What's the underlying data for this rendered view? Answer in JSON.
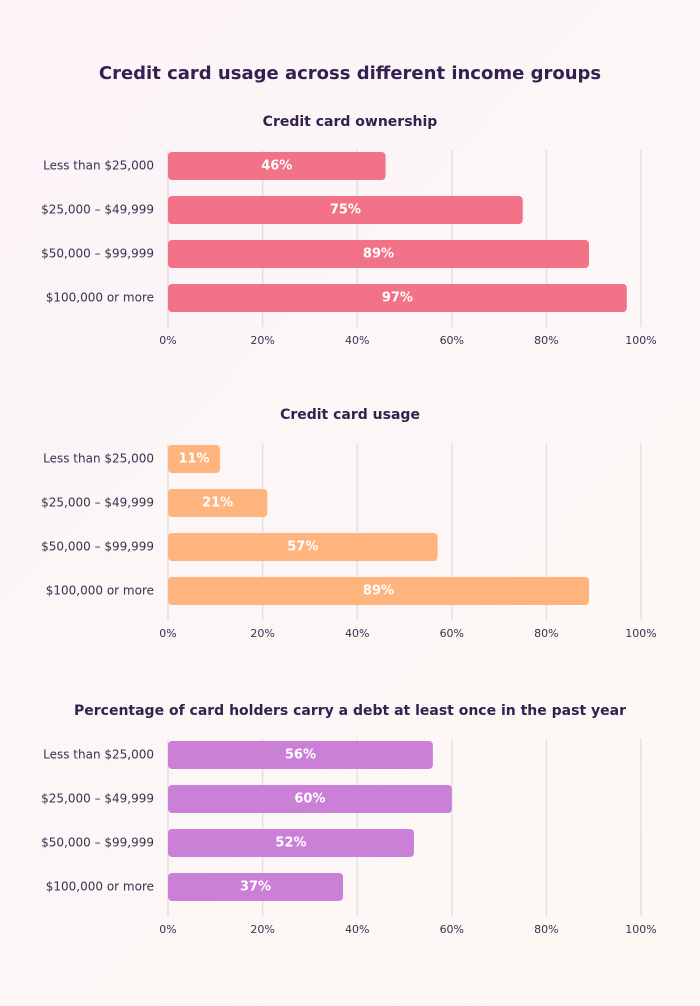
{
  "title": "Credit card usage across different income groups",
  "chart_data": [
    {
      "type": "bar",
      "orientation": "horizontal",
      "title": "Credit card ownership",
      "categories": [
        "Less than $25,000",
        "$25,000 – $49,999",
        "$50,000 – $99,999",
        "$100,000 or more"
      ],
      "values": [
        46,
        75,
        89,
        97
      ],
      "value_labels": [
        "46%",
        "75%",
        "89%",
        "97%"
      ],
      "color": "#f27287",
      "xlim": [
        0,
        100
      ],
      "xticks": [
        {
          "value": 0,
          "label": "0%"
        },
        {
          "value": 20,
          "label": "20%"
        },
        {
          "value": 40,
          "label": "40%"
        },
        {
          "value": 60,
          "label": "60%"
        },
        {
          "value": 80,
          "label": "80%"
        },
        {
          "value": 100,
          "label": "100%"
        }
      ],
      "grid": true
    },
    {
      "type": "bar",
      "orientation": "horizontal",
      "title": "Credit card usage",
      "categories": [
        "Less than $25,000",
        "$25,000 – $49,999",
        "$50,000 – $99,999",
        "$100,000 or more"
      ],
      "values": [
        11,
        21,
        57,
        89
      ],
      "value_labels": [
        "11%",
        "21%",
        "57%",
        "89%"
      ],
      "color": "#ffb47d",
      "xlim": [
        0,
        100
      ],
      "xticks": [
        {
          "value": 0,
          "label": "0%"
        },
        {
          "value": 20,
          "label": "20%"
        },
        {
          "value": 40,
          "label": "40%"
        },
        {
          "value": 60,
          "label": "60%"
        },
        {
          "value": 80,
          "label": "80%"
        },
        {
          "value": 100,
          "label": "100%"
        }
      ],
      "grid": true
    },
    {
      "type": "bar",
      "orientation": "horizontal",
      "title": "Percentage of card holders carry a debt at least once in the past year",
      "categories": [
        "Less than $25,000",
        "$25,000 – $49,999",
        "$50,000 – $99,999",
        "$100,000 or more"
      ],
      "values": [
        56,
        60,
        52,
        37
      ],
      "value_labels": [
        "56%",
        "60%",
        "52%",
        "37%"
      ],
      "color": "#cb80d8",
      "xlim": [
        0,
        100
      ],
      "xticks": [
        {
          "value": 0,
          "label": "0%"
        },
        {
          "value": 20,
          "label": "20%"
        },
        {
          "value": 40,
          "label": "40%"
        },
        {
          "value": 60,
          "label": "60%"
        },
        {
          "value": 80,
          "label": "80%"
        },
        {
          "value": 100,
          "label": "100%"
        }
      ],
      "grid": true
    }
  ]
}
